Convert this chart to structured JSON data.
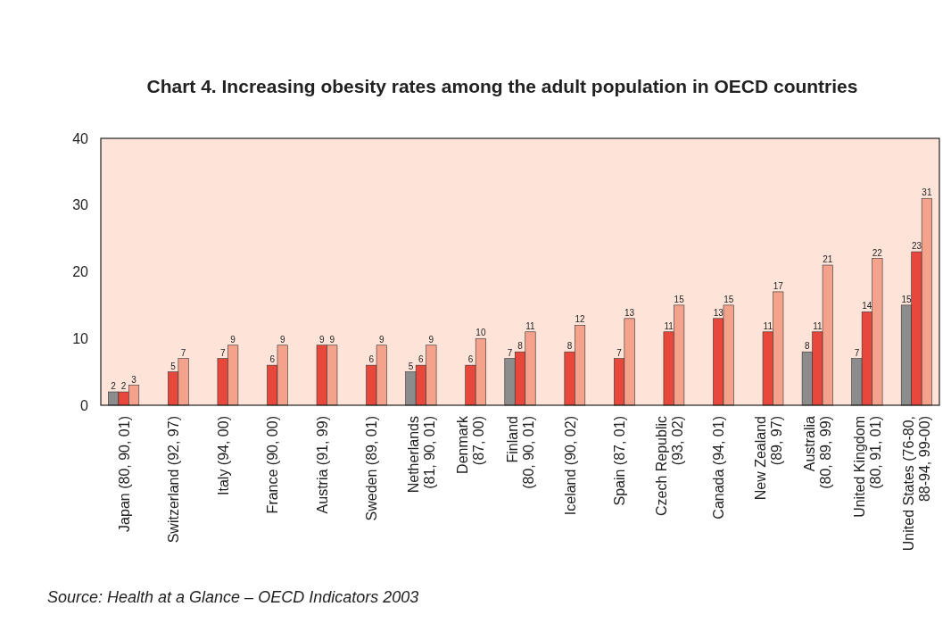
{
  "chart_data": {
    "type": "bar",
    "title": "Chart 4.  Increasing obesity rates among the adult population in OECD countries",
    "categories": [
      "Japan (80, 90, 01)",
      "Switzerland (92, 97)",
      "Italy (94, 00)",
      "France (90, 00)",
      "Austria (91, 99)",
      "Sweden (89, 01)",
      "Netherlands\n(81, 90, 01)",
      "Denmark\n(87, 00)",
      "Finland\n(80, 90, 01)",
      "Iceland (90, 02)",
      "Spain (87, 01)",
      "Czech Republic\n(93, 02)",
      "Canada (94, 01)",
      "New Zealand\n(89, 97)",
      "Australia\n(80, 89, 99)",
      "United Kingdom\n(80, 91, 01)",
      "United States (76-80,\n88-94, 99-00)"
    ],
    "series": [
      {
        "color": "#8c8c8c",
        "values": [
          2,
          null,
          null,
          null,
          null,
          null,
          5,
          null,
          7,
          null,
          null,
          null,
          null,
          null,
          8,
          7,
          15
        ]
      },
      {
        "color": "#e8473b",
        "values": [
          2,
          5,
          7,
          6,
          9,
          6,
          6,
          6,
          8,
          8,
          7,
          11,
          13,
          11,
          11,
          14,
          23
        ]
      },
      {
        "color": "#f4a28c",
        "values": [
          3,
          7,
          9,
          9,
          9,
          9,
          9,
          10,
          11,
          12,
          13,
          15,
          15,
          17,
          21,
          22,
          31
        ]
      }
    ],
    "ylim": [
      0,
      40
    ],
    "yticks": [
      0,
      10,
      20,
      30,
      40
    ],
    "data_labels": true,
    "annotations": [
      "Source: Health at a Glance – OECD Indicators 2003"
    ]
  }
}
